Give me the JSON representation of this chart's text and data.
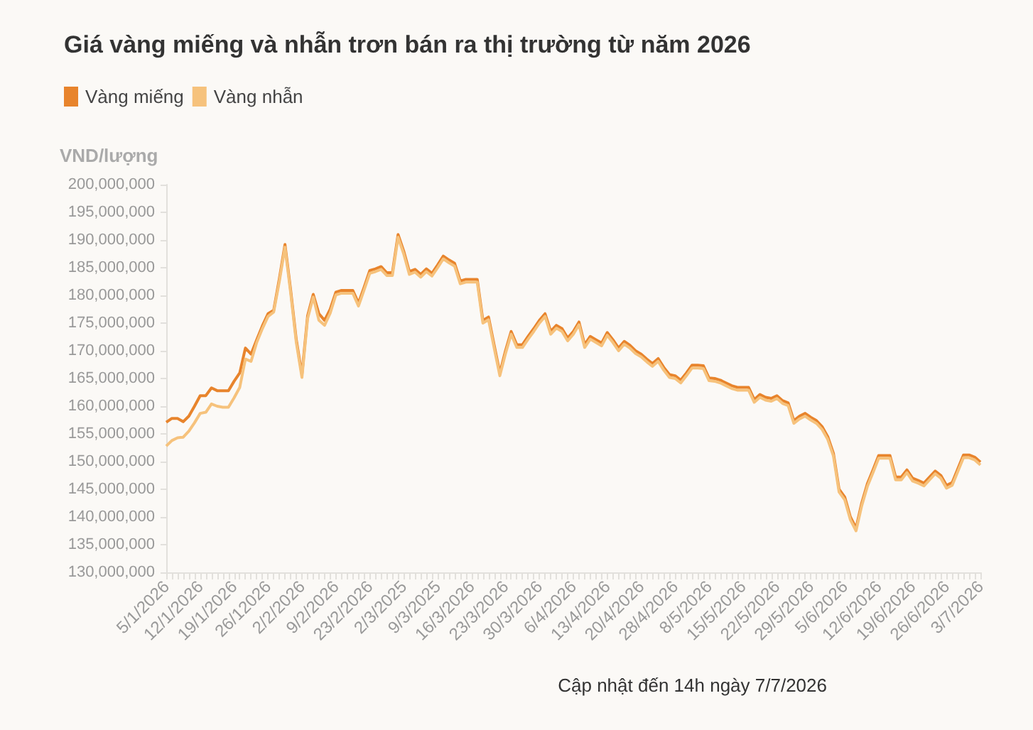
{
  "chart_data": {
    "type": "line",
    "title": "Giá vàng miếng và nhẫn trơn bán ra thị trường từ năm 2026",
    "ylabel": "VND/lượng",
    "annotations": [
      "Cập nhật đến 14h ngày 7/7/2026"
    ],
    "categories": [
      "5/1/2026",
      null,
      null,
      null,
      null,
      null,
      "12/1/2026",
      null,
      null,
      null,
      null,
      null,
      "19/1/2026",
      null,
      null,
      null,
      null,
      null,
      "26/12026",
      null,
      null,
      null,
      null,
      null,
      "2/2/2026",
      null,
      null,
      null,
      null,
      null,
      "9/2/2026",
      null,
      null,
      null,
      null,
      null,
      "23/2/2026",
      null,
      null,
      null,
      null,
      null,
      "2/3/2025",
      null,
      null,
      null,
      null,
      null,
      "9/3/2025",
      null,
      null,
      null,
      null,
      null,
      "16/3/2026",
      null,
      null,
      null,
      null,
      null,
      "23/3/2026",
      null,
      null,
      null,
      null,
      null,
      "30/3/2026",
      null,
      null,
      null,
      null,
      null,
      "6/4/2026",
      null,
      null,
      null,
      null,
      null,
      "13/4/2026",
      null,
      null,
      null,
      null,
      null,
      "20/4/2026",
      null,
      null,
      null,
      null,
      null,
      "28/4/2026",
      null,
      null,
      null,
      null,
      null,
      "8/5/2026",
      null,
      null,
      null,
      null,
      null,
      "15/5/2026",
      null,
      null,
      null,
      null,
      null,
      "22/5/2026",
      null,
      null,
      null,
      null,
      null,
      "29/5/2026",
      null,
      null,
      null,
      null,
      null,
      "5/6/2026",
      null,
      null,
      null,
      null,
      null,
      "12/6/2026",
      null,
      null,
      null,
      null,
      null,
      "19/6/2026",
      null,
      null,
      null,
      null,
      null,
      "26/6/2026",
      null,
      null,
      null,
      null,
      null,
      "3/7/2026"
    ],
    "series": [
      {
        "name": "Vàng miếng",
        "color": "#e8842c",
        "values": [
          157100000,
          157800000,
          157800000,
          157200000,
          158200000,
          160000000,
          161900000,
          161900000,
          163300000,
          162800000,
          162800000,
          162800000,
          164500000,
          166000000,
          170500000,
          169400000,
          172000000,
          174500000,
          176700000,
          177300000,
          183000000,
          189200000,
          181000000,
          172000000,
          165700000,
          176300000,
          180200000,
          176700000,
          175500000,
          177500000,
          180600000,
          180900000,
          180900000,
          180900000,
          178600000,
          181500000,
          184500000,
          184800000,
          185200000,
          184100000,
          184100000,
          191000000,
          188000000,
          184300000,
          184700000,
          183800000,
          184800000,
          184000000,
          185500000,
          187100000,
          186400000,
          185800000,
          182600000,
          182900000,
          182900000,
          182900000,
          175500000,
          176100000,
          171000000,
          166000000,
          170000000,
          173500000,
          171100000,
          171100000,
          172600000,
          174000000,
          175500000,
          176700000,
          173500000,
          174600000,
          174000000,
          172300000,
          173500000,
          175200000,
          171100000,
          172600000,
          172000000,
          171400000,
          173300000,
          172000000,
          170500000,
          171700000,
          171000000,
          170000000,
          169400000,
          168500000,
          167700000,
          168600000,
          167000000,
          165700000,
          165500000,
          164700000,
          166000000,
          167400000,
          167400000,
          167300000,
          165100000,
          165000000,
          164700000,
          164200000,
          163700000,
          163400000,
          163400000,
          163400000,
          161200000,
          162100000,
          161600000,
          161400000,
          161900000,
          161000000,
          160600000,
          157400000,
          158200000,
          158700000,
          158000000,
          157400000,
          156300000,
          154500000,
          151500000,
          145000000,
          143600000,
          140000000,
          138000000,
          142500000,
          146000000,
          148500000,
          151100000,
          151100000,
          151100000,
          147200000,
          147200000,
          148500000,
          147000000,
          146600000,
          146100000,
          147200000,
          148300000,
          147500000,
          145700000,
          146200000,
          148700000,
          151200000,
          151200000,
          150800000,
          149900000
        ]
      },
      {
        "name": "Vàng nhẫn",
        "color": "#f6c27c",
        "values": [
          152800000,
          153800000,
          154300000,
          154400000,
          155500000,
          157000000,
          158700000,
          158900000,
          160400000,
          160000000,
          159800000,
          159800000,
          161500000,
          163400000,
          168500000,
          168100000,
          171500000,
          174000000,
          176200000,
          177000000,
          182500000,
          188700000,
          180500000,
          171500000,
          165200000,
          175800000,
          179700000,
          175500000,
          174600000,
          176800000,
          180100000,
          180400000,
          180400000,
          180400000,
          178100000,
          181000000,
          184000000,
          184300000,
          184700000,
          183600000,
          183600000,
          190500000,
          187500000,
          183800000,
          184200000,
          183300000,
          184300000,
          183500000,
          185000000,
          186600000,
          185900000,
          185300000,
          182100000,
          182400000,
          182400000,
          182400000,
          175000000,
          175600000,
          170500000,
          165500000,
          169500000,
          173000000,
          170600000,
          170600000,
          172100000,
          173500000,
          175000000,
          176200000,
          173000000,
          174100000,
          173500000,
          171800000,
          173000000,
          174700000,
          170600000,
          172100000,
          171500000,
          170900000,
          172800000,
          171500000,
          170000000,
          171200000,
          170500000,
          169500000,
          168900000,
          168000000,
          167200000,
          168100000,
          166500000,
          165200000,
          165000000,
          164200000,
          165500000,
          166900000,
          166900000,
          166800000,
          164600000,
          164500000,
          164200000,
          163700000,
          163200000,
          162900000,
          162900000,
          162900000,
          160700000,
          161600000,
          161100000,
          160900000,
          161400000,
          160500000,
          160100000,
          156900000,
          157700000,
          158200000,
          157500000,
          156900000,
          155800000,
          154000000,
          151000000,
          144500000,
          143100000,
          139500000,
          137500000,
          142000000,
          145500000,
          148000000,
          150600000,
          150600000,
          150600000,
          146700000,
          146700000,
          148000000,
          146500000,
          146100000,
          145600000,
          146700000,
          147800000,
          147000000,
          145200000,
          145700000,
          148200000,
          150700000,
          150700000,
          150300000,
          149400000
        ]
      }
    ],
    "ylim": [
      130000000,
      200000000
    ],
    "yticks": [
      {
        "value": 130000000,
        "label": "130,000,000"
      },
      {
        "value": 135000000,
        "label": "135,000,000"
      },
      {
        "value": 140000000,
        "label": "140,000,000"
      },
      {
        "value": 145000000,
        "label": "145,000,000"
      },
      {
        "value": 150000000,
        "label": "150,000,000"
      },
      {
        "value": 155000000,
        "label": "155,000,000"
      },
      {
        "value": 160000000,
        "label": "160,000,000"
      },
      {
        "value": 165000000,
        "label": "165,000,000"
      },
      {
        "value": 170000000,
        "label": "170,000,000"
      },
      {
        "value": 175000000,
        "label": "175,000,000"
      },
      {
        "value": 180000000,
        "label": "180,000,000"
      },
      {
        "value": 185000000,
        "label": "185,000,000"
      },
      {
        "value": 190000000,
        "label": "190,000,000"
      },
      {
        "value": 195000000,
        "label": "195,000,000"
      },
      {
        "value": 200000000,
        "label": "200,000,000"
      }
    ],
    "grid": false,
    "legend": "top left",
    "marker": "none"
  }
}
